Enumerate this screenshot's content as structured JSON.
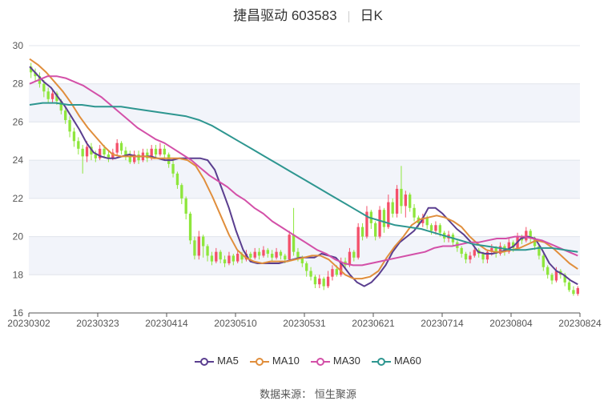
{
  "chart_data": {
    "type": "candlestick",
    "title_name": "捷昌驱动 603583",
    "title_period": "日K",
    "ylim": [
      16,
      30
    ],
    "y_ticks": [
      16,
      18,
      20,
      22,
      24,
      26,
      28,
      30
    ],
    "x_tick_labels": [
      "20230302",
      "20230323",
      "20230414",
      "20230510",
      "20230531",
      "20230621",
      "20230714",
      "20230804",
      "20230824"
    ],
    "colors": {
      "up": "#f4506a",
      "down": "#8ee63c",
      "MA5": "#5a3e8f",
      "MA10": "#e08e3c",
      "MA30": "#d350a8",
      "MA60": "#2e9690",
      "band": "#f2f4fa",
      "grid": "#e0e4ec"
    },
    "candles": [
      [
        28.9,
        28.6,
        29.1,
        28.3
      ],
      [
        28.6,
        28.4,
        28.8,
        28.1
      ],
      [
        28.4,
        28.0,
        28.6,
        27.8
      ],
      [
        28.0,
        27.6,
        28.2,
        27.3
      ],
      [
        27.6,
        27.2,
        27.8,
        27.0
      ],
      [
        27.2,
        27.5,
        27.7,
        27.0
      ],
      [
        27.5,
        27.1,
        27.6,
        26.9
      ],
      [
        27.1,
        26.6,
        27.2,
        26.4
      ],
      [
        26.6,
        26.1,
        26.8,
        25.9
      ],
      [
        26.1,
        25.5,
        26.3,
        25.2
      ],
      [
        25.5,
        25.0,
        25.7,
        24.7
      ],
      [
        25.0,
        24.6,
        25.2,
        24.3
      ],
      [
        24.6,
        24.2,
        24.8,
        23.3
      ],
      [
        24.2,
        24.7,
        25.0,
        23.9
      ],
      [
        24.7,
        24.3,
        24.9,
        24.0
      ],
      [
        24.3,
        24.1,
        24.5,
        23.9
      ],
      [
        24.1,
        24.6,
        24.8,
        24.0
      ],
      [
        24.6,
        24.3,
        24.8,
        24.1
      ],
      [
        24.3,
        24.1,
        24.5,
        23.9
      ],
      [
        24.1,
        24.4,
        24.6,
        24.0
      ],
      [
        24.4,
        24.9,
        25.1,
        24.2
      ],
      [
        24.9,
        24.5,
        25.0,
        24.3
      ],
      [
        24.5,
        24.2,
        24.7,
        24.0
      ],
      [
        24.2,
        23.9,
        24.5,
        23.8
      ],
      [
        23.9,
        24.3,
        24.5,
        23.8
      ],
      [
        24.3,
        24.0,
        24.5,
        23.8
      ],
      [
        24.0,
        24.4,
        24.6,
        23.9
      ],
      [
        24.4,
        24.1,
        24.6,
        23.9
      ],
      [
        24.1,
        24.6,
        24.8,
        24.0
      ],
      [
        24.6,
        24.3,
        24.8,
        24.1
      ],
      [
        24.3,
        24.6,
        24.9,
        24.2
      ],
      [
        24.6,
        24.3,
        24.8,
        24.0
      ],
      [
        24.3,
        23.8,
        24.4,
        23.6
      ],
      [
        23.8,
        23.3,
        24.0,
        23.1
      ],
      [
        23.3,
        22.7,
        23.4,
        22.5
      ],
      [
        22.7,
        22.0,
        22.8,
        21.7
      ],
      [
        22.0,
        21.2,
        22.1,
        20.9
      ],
      [
        21.2,
        19.8,
        21.3,
        19.6
      ],
      [
        19.8,
        19.0,
        20.0,
        18.8
      ],
      [
        19.0,
        20.0,
        20.3,
        18.8
      ],
      [
        20.0,
        19.5,
        20.1,
        18.9
      ],
      [
        19.5,
        19.0,
        19.6,
        18.7
      ],
      [
        19.0,
        18.7,
        19.2,
        18.5
      ],
      [
        18.7,
        19.2,
        19.4,
        18.6
      ],
      [
        19.2,
        18.8,
        19.3,
        18.6
      ],
      [
        18.8,
        18.6,
        19.0,
        18.4
      ],
      [
        18.6,
        19.0,
        19.2,
        18.5
      ],
      [
        19.0,
        18.7,
        19.1,
        18.5
      ],
      [
        18.7,
        19.1,
        19.3,
        18.6
      ],
      [
        19.1,
        18.8,
        19.2,
        18.6
      ],
      [
        18.8,
        19.1,
        19.3,
        18.7
      ],
      [
        19.1,
        18.9,
        19.2,
        18.7
      ],
      [
        18.9,
        19.2,
        19.4,
        18.8
      ],
      [
        19.2,
        19.0,
        19.4,
        18.8
      ],
      [
        19.0,
        19.3,
        19.5,
        18.9
      ],
      [
        19.3,
        19.1,
        19.4,
        18.9
      ],
      [
        19.1,
        18.9,
        19.3,
        18.7
      ],
      [
        18.9,
        19.2,
        19.4,
        18.8
      ],
      [
        19.2,
        19.0,
        19.3,
        18.8
      ],
      [
        19.0,
        18.8,
        19.1,
        18.6
      ],
      [
        18.8,
        20.1,
        20.3,
        18.7
      ],
      [
        20.1,
        19.2,
        21.5,
        19.0
      ],
      [
        19.2,
        18.9,
        19.4,
        18.7
      ],
      [
        18.9,
        18.6,
        19.0,
        18.4
      ],
      [
        18.6,
        18.2,
        18.7,
        17.9
      ],
      [
        18.2,
        17.9,
        18.4,
        17.7
      ],
      [
        17.9,
        17.5,
        18.0,
        17.3
      ],
      [
        17.5,
        17.8,
        18.0,
        17.3
      ],
      [
        17.8,
        17.4,
        17.9,
        17.2
      ],
      [
        17.4,
        17.9,
        18.2,
        17.3
      ],
      [
        17.9,
        18.3,
        18.5,
        17.7
      ],
      [
        18.3,
        18.0,
        18.5,
        17.9
      ],
      [
        18.0,
        18.7,
        18.9,
        17.9
      ],
      [
        18.7,
        18.5,
        18.9,
        18.3
      ],
      [
        18.5,
        19.2,
        19.4,
        18.4
      ],
      [
        19.2,
        18.9,
        19.3,
        18.7
      ],
      [
        18.9,
        20.5,
        20.7,
        18.8
      ],
      [
        20.5,
        20.0,
        20.7,
        19.8
      ],
      [
        20.0,
        21.3,
        21.6,
        19.9
      ],
      [
        21.3,
        20.7,
        21.4,
        20.4
      ],
      [
        20.7,
        20.0,
        20.8,
        19.8
      ],
      [
        20.0,
        21.4,
        21.6,
        19.9
      ],
      [
        21.4,
        20.5,
        21.5,
        20.2
      ],
      [
        20.5,
        21.8,
        22.2,
        20.4
      ],
      [
        21.8,
        21.2,
        22.0,
        21.0
      ],
      [
        21.2,
        22.5,
        22.7,
        21.0
      ],
      [
        22.5,
        21.6,
        23.7,
        21.2
      ],
      [
        21.6,
        22.2,
        22.4,
        21.0
      ],
      [
        22.2,
        21.5,
        22.3,
        21.3
      ],
      [
        21.5,
        21.0,
        21.7,
        20.8
      ],
      [
        21.0,
        20.7,
        21.1,
        20.5
      ],
      [
        20.7,
        21.0,
        21.2,
        20.5
      ],
      [
        21.0,
        20.6,
        21.1,
        20.4
      ],
      [
        20.6,
        20.3,
        20.7,
        20.1
      ],
      [
        20.3,
        20.6,
        20.8,
        20.1
      ],
      [
        20.6,
        20.2,
        20.7,
        20.0
      ],
      [
        20.2,
        19.9,
        20.3,
        19.7
      ],
      [
        19.9,
        20.1,
        20.3,
        19.7
      ],
      [
        20.1,
        19.7,
        20.2,
        19.5
      ],
      [
        19.7,
        19.4,
        19.8,
        19.2
      ],
      [
        19.4,
        19.1,
        19.5,
        18.9
      ],
      [
        19.1,
        18.8,
        19.2,
        18.6
      ],
      [
        18.8,
        19.0,
        19.2,
        18.6
      ],
      [
        19.0,
        19.3,
        19.5,
        18.9
      ],
      [
        19.3,
        19.1,
        19.4,
        18.9
      ],
      [
        19.1,
        18.8,
        19.2,
        18.6
      ],
      [
        18.8,
        19.2,
        19.3,
        18.6
      ],
      [
        19.2,
        19.4,
        19.6,
        19.0
      ],
      [
        19.4,
        19.1,
        19.5,
        18.9
      ],
      [
        19.1,
        19.5,
        19.7,
        19.0
      ],
      [
        19.5,
        19.2,
        19.6,
        19.0
      ],
      [
        19.2,
        19.7,
        19.9,
        19.1
      ],
      [
        19.7,
        19.4,
        19.8,
        19.2
      ],
      [
        19.4,
        20.0,
        20.2,
        19.3
      ],
      [
        20.0,
        19.8,
        20.1,
        19.6
      ],
      [
        19.8,
        20.3,
        20.5,
        19.7
      ],
      [
        20.3,
        19.9,
        20.4,
        19.7
      ],
      [
        19.9,
        19.5,
        20.0,
        19.3
      ],
      [
        19.5,
        19.0,
        19.6,
        18.8
      ],
      [
        19.0,
        18.4,
        19.1,
        18.2
      ],
      [
        18.4,
        18.0,
        18.5,
        17.8
      ],
      [
        18.0,
        17.7,
        18.1,
        17.5
      ],
      [
        17.7,
        18.2,
        18.4,
        17.6
      ],
      [
        18.2,
        18.0,
        18.3,
        17.8
      ],
      [
        18.0,
        17.6,
        18.1,
        17.4
      ],
      [
        17.6,
        17.2,
        17.7,
        17.1
      ],
      [
        17.2,
        17.0,
        17.4,
        16.9
      ],
      [
        17.0,
        17.3,
        17.4,
        16.9
      ]
    ],
    "series": [
      {
        "name": "MA5",
        "values": [
          28.9,
          28.5,
          28.1,
          27.8,
          27.3,
          26.8,
          26.2,
          25.6,
          24.9,
          24.4,
          24.2,
          24.1,
          24.1,
          24.2,
          24.3,
          24.2,
          24.2,
          24.2,
          24.1,
          24.0,
          24.0,
          24.1,
          24.1,
          24.1,
          24.1,
          24.0,
          23.5,
          22.5,
          21.5,
          20.3,
          19.3,
          18.7,
          18.6,
          18.6,
          18.6,
          18.6,
          18.7,
          18.8,
          18.9,
          18.9,
          18.9,
          19.1,
          19.0,
          18.9,
          18.5,
          18.0,
          17.6,
          17.4,
          17.6,
          18.0,
          18.5,
          19.2,
          19.7,
          20.0,
          20.3,
          20.8,
          21.5,
          21.5,
          21.2,
          20.8,
          20.4,
          20.1,
          19.7,
          19.2,
          19.1,
          19.1,
          19.2,
          19.3,
          19.5,
          19.9,
          20.0,
          19.9,
          19.3,
          18.6,
          18.2,
          18.0,
          17.7,
          17.5
        ]
      },
      {
        "name": "MA10",
        "values": [
          29.3,
          29.0,
          28.6,
          28.1,
          27.6,
          27.0,
          26.3,
          25.7,
          25.2,
          24.7,
          24.3,
          24.2,
          24.2,
          24.2,
          24.2,
          24.1,
          24.1,
          24.1,
          24.1,
          24.0,
          23.7,
          23.0,
          22.1,
          21.1,
          20.1,
          19.3,
          18.9,
          18.7,
          18.6,
          18.7,
          18.7,
          18.7,
          18.8,
          18.9,
          19.0,
          19.0,
          18.8,
          18.4,
          18.0,
          17.8,
          17.8,
          17.9,
          18.2,
          18.9,
          19.5,
          20.0,
          20.6,
          20.9,
          21.0,
          21.1,
          21.0,
          20.8,
          20.5,
          20.0,
          19.6,
          19.3,
          19.2,
          19.2,
          19.3,
          19.4,
          19.6,
          19.8,
          19.7,
          19.4,
          19.0,
          18.6,
          18.3
        ]
      },
      {
        "name": "MA30",
        "values": [
          28.0,
          28.2,
          28.4,
          28.4,
          28.3,
          28.1,
          27.9,
          27.6,
          27.3,
          26.9,
          26.5,
          26.1,
          25.7,
          25.4,
          25.1,
          24.9,
          24.6,
          24.3,
          24.0,
          23.6,
          23.2,
          22.9,
          22.6,
          22.2,
          21.9,
          21.5,
          21.2,
          20.8,
          20.5,
          20.2,
          19.9,
          19.6,
          19.3,
          19.1,
          18.8,
          18.6,
          18.5,
          18.5,
          18.6,
          18.7,
          18.8,
          18.9,
          19.0,
          19.1,
          19.2,
          19.4,
          19.5,
          19.5,
          19.6,
          19.7,
          19.7,
          19.8,
          19.9,
          19.9,
          20.0,
          20.0,
          19.9,
          19.8,
          19.6,
          19.4,
          19.2,
          19.0
        ]
      },
      {
        "name": "MA60",
        "values": [
          26.9,
          27.0,
          27.0,
          26.9,
          26.9,
          26.8,
          26.8,
          26.8,
          26.7,
          26.6,
          26.5,
          26.4,
          26.3,
          26.1,
          25.8,
          25.4,
          25.0,
          24.6,
          24.2,
          23.8,
          23.4,
          23.0,
          22.6,
          22.2,
          21.8,
          21.4,
          21.0,
          20.8,
          20.6,
          20.5,
          20.4,
          20.2,
          20.0,
          19.8,
          19.6,
          19.5,
          19.4,
          19.3,
          19.3,
          19.4,
          19.4,
          19.3,
          19.2
        ]
      }
    ],
    "legend_position": "bottom"
  },
  "source_label": "数据来源：",
  "source_name": "恒生聚源"
}
